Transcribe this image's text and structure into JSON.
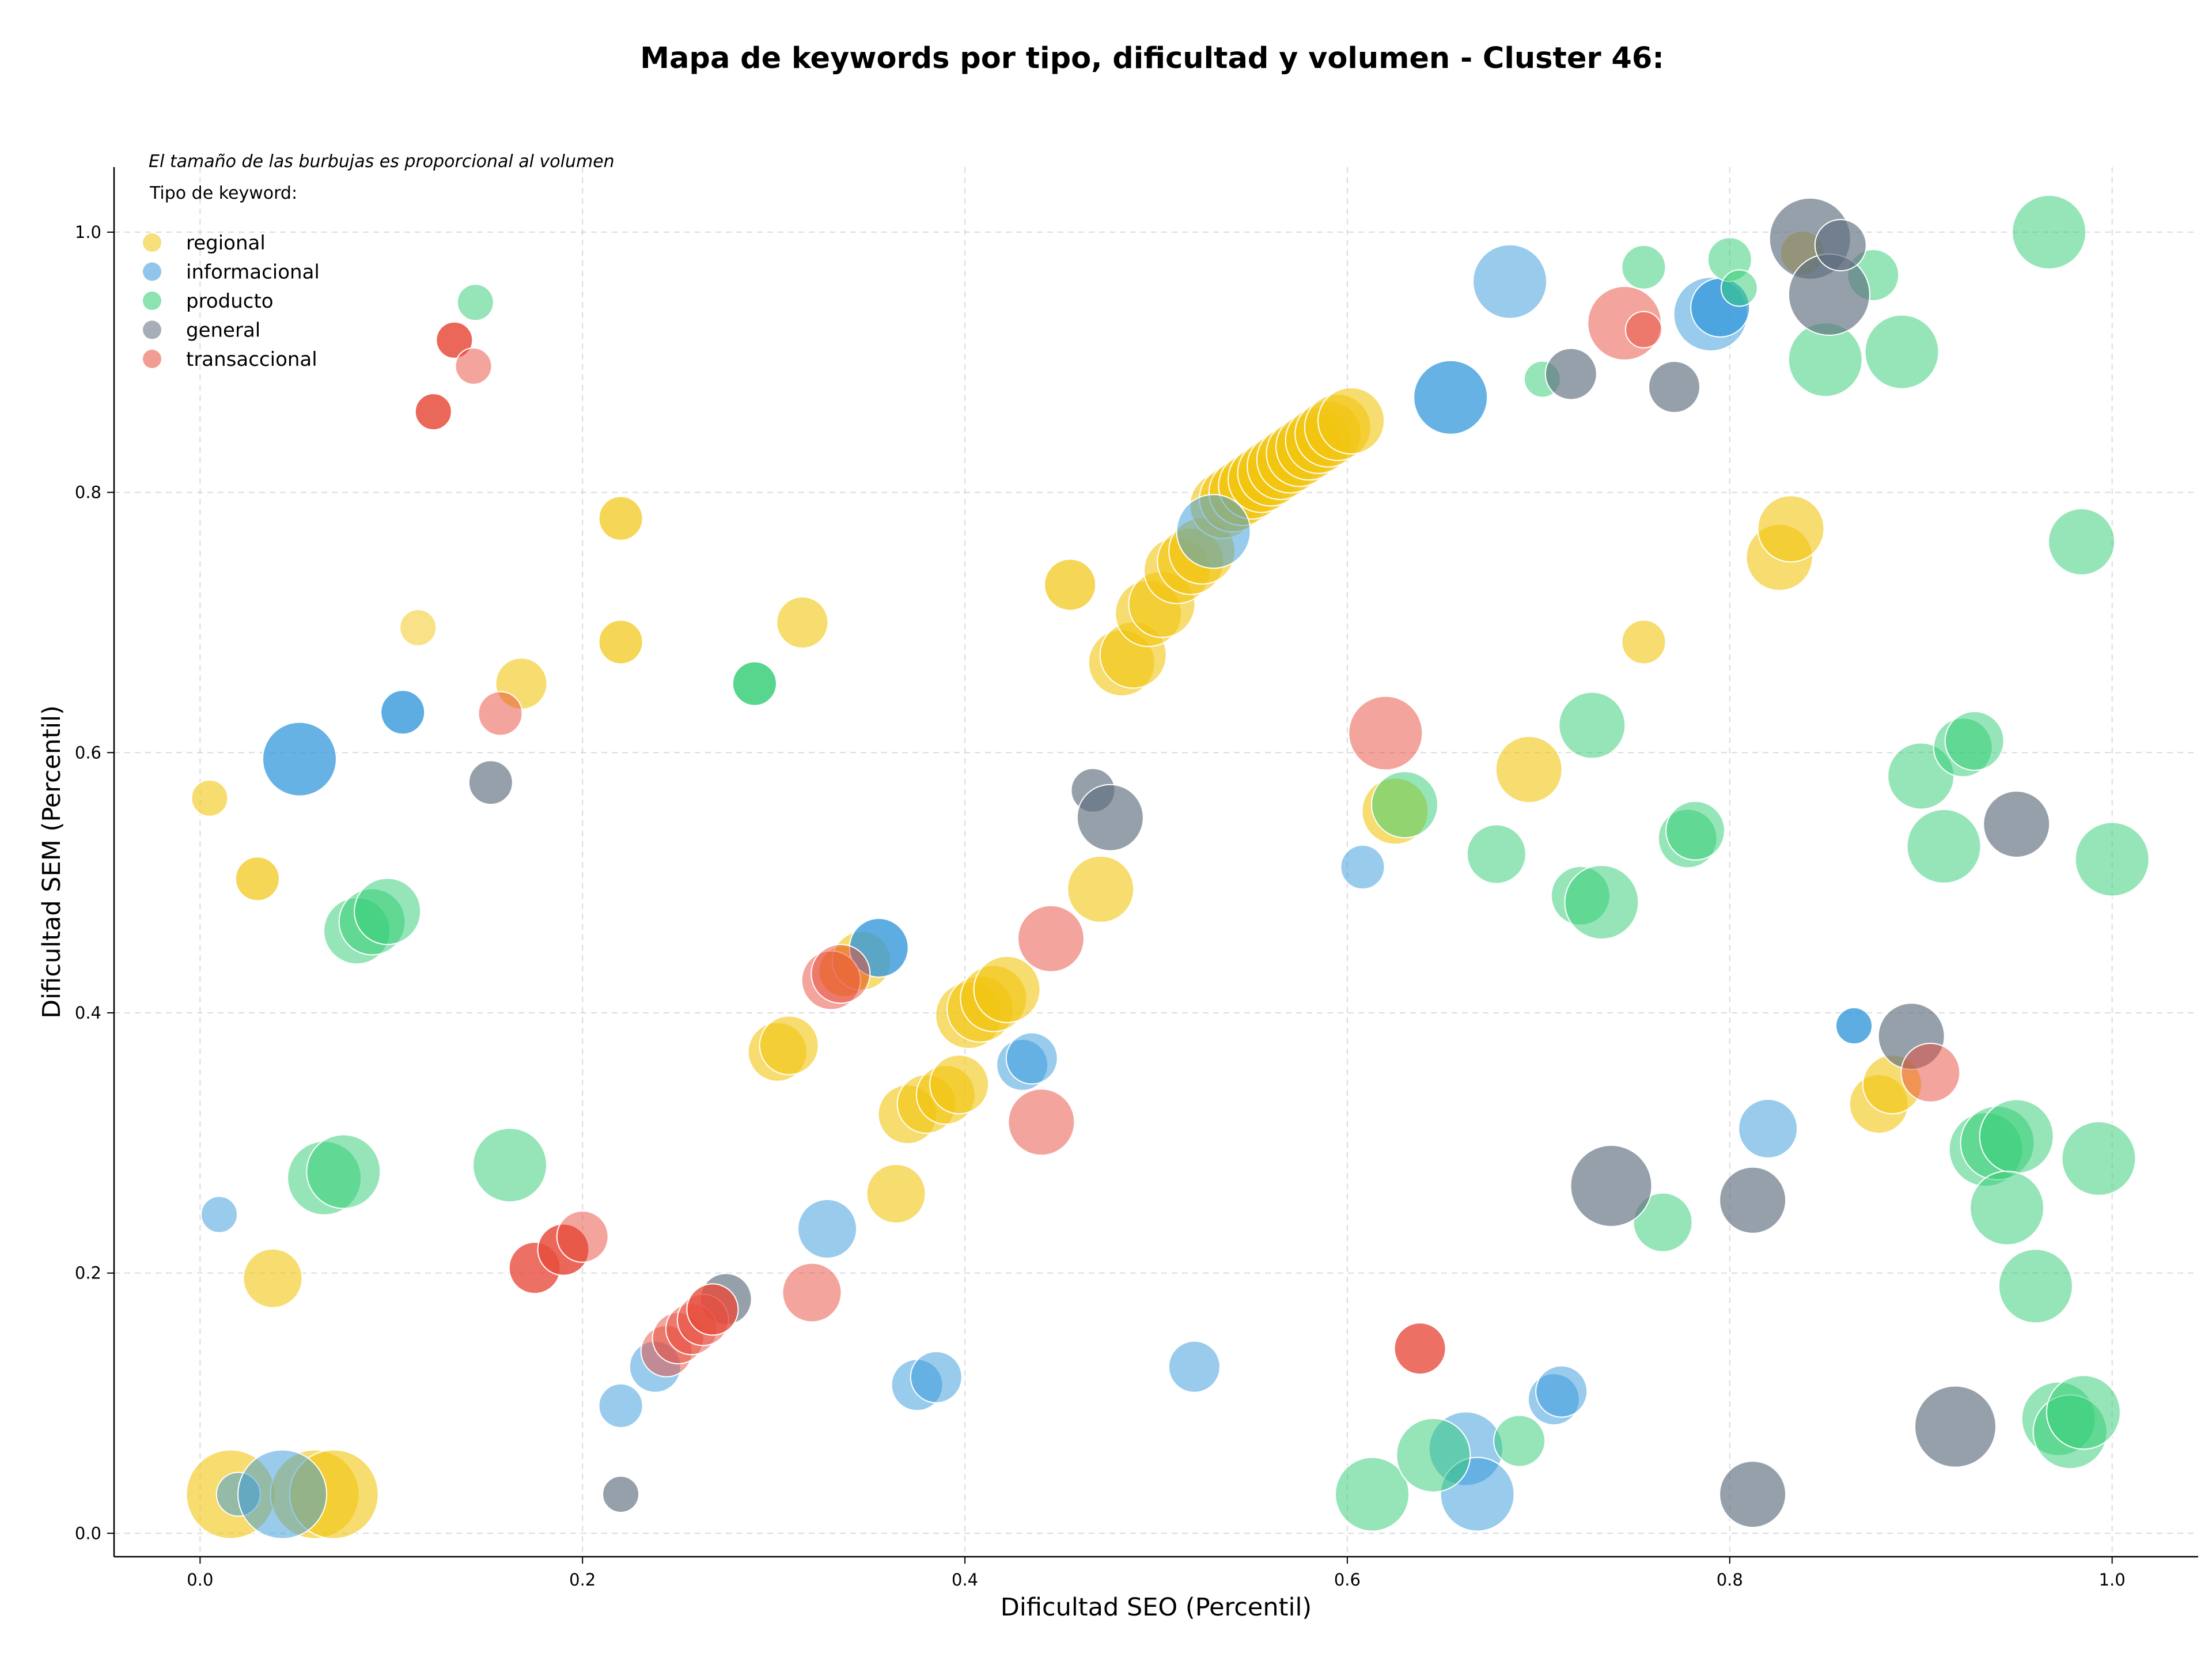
{
  "colors": {
    "regional": "#F1C40F",
    "informacional": "#3498DB",
    "producto": "#2ECC71",
    "general": "#5D6D7E",
    "transaccional": "#E74C3C"
  },
  "chart_data": {
    "type": "scatter",
    "title": "Mapa de keywords por tipo, dificultad y volumen - Cluster 46:",
    "xlabel": "Dificultad SEO (Percentil)",
    "ylabel": "Dificultad SEM (Percentil)",
    "xlim": [
      -0.045,
      1.045
    ],
    "ylim": [
      -0.018,
      1.05
    ],
    "xticks": [
      "0.0",
      "0.2",
      "0.4",
      "0.6",
      "0.8",
      "1.0"
    ],
    "yticks": [
      "0.0",
      "0.2",
      "0.4",
      "0.6",
      "0.8",
      "1.0"
    ],
    "grid": true,
    "note": "El tamaño de las burbujas es proporcional al volumen",
    "legend": {
      "title": "Tipo de keyword:",
      "position": "top-left",
      "entries": [
        "regional",
        "informacional",
        "producto",
        "general",
        "transaccional"
      ]
    },
    "series": [
      {
        "name": "regional",
        "points": [
          [
            0.005,
            0.565,
            1.5,
            0.6
          ],
          [
            0.03,
            0.503,
            2,
            0.7
          ],
          [
            0.038,
            0.196,
            3,
            0.6
          ],
          [
            0.016,
            0.03,
            5,
            0.6
          ],
          [
            0.06,
            0.03,
            5,
            0.6
          ],
          [
            0.07,
            0.03,
            5,
            0.6
          ],
          [
            0.114,
            0.696,
            1.5,
            0.5
          ],
          [
            0.168,
            0.653,
            2.5,
            0.6
          ],
          [
            0.22,
            0.78,
            2,
            0.7
          ],
          [
            0.22,
            0.685,
            2,
            0.7
          ],
          [
            0.315,
            0.7,
            2.5,
            0.6
          ],
          [
            0.302,
            0.37,
            3,
            0.6
          ],
          [
            0.308,
            0.375,
            3,
            0.6
          ],
          [
            0.337,
            0.432,
            2.5,
            0.7
          ],
          [
            0.346,
            0.44,
            3,
            0.6
          ],
          [
            0.364,
            0.261,
            3,
            0.6
          ],
          [
            0.37,
            0.322,
            3,
            0.6
          ],
          [
            0.38,
            0.33,
            3,
            0.6
          ],
          [
            0.39,
            0.337,
            3,
            0.6
          ],
          [
            0.397,
            0.345,
            3,
            0.6
          ],
          [
            0.402,
            0.398,
            3.5,
            0.6
          ],
          [
            0.408,
            0.403,
            3.5,
            0.6
          ],
          [
            0.415,
            0.411,
            3.5,
            0.6
          ],
          [
            0.422,
            0.418,
            3.5,
            0.6
          ],
          [
            0.455,
            0.729,
            2.5,
            0.7
          ],
          [
            0.471,
            0.495,
            3.5,
            0.6
          ],
          [
            0.482,
            0.669,
            3.5,
            0.6
          ],
          [
            0.488,
            0.675,
            3.5,
            0.6
          ],
          [
            0.496,
            0.707,
            3.5,
            0.6
          ],
          [
            0.503,
            0.714,
            3.5,
            0.6
          ],
          [
            0.511,
            0.74,
            3.5,
            0.6
          ],
          [
            0.518,
            0.747,
            3.5,
            0.6
          ],
          [
            0.524,
            0.755,
            3.5,
            0.6
          ],
          [
            0.535,
            0.79,
            3.5,
            0.6
          ],
          [
            0.54,
            0.795,
            3.5,
            0.6
          ],
          [
            0.545,
            0.8,
            3.5,
            0.6
          ],
          [
            0.55,
            0.805,
            3.5,
            0.6
          ],
          [
            0.555,
            0.81,
            3.5,
            0.6
          ],
          [
            0.56,
            0.815,
            3.5,
            0.6
          ],
          [
            0.565,
            0.82,
            3.5,
            0.6
          ],
          [
            0.57,
            0.825,
            3.5,
            0.6
          ],
          [
            0.575,
            0.83,
            3.5,
            0.6
          ],
          [
            0.58,
            0.835,
            3.5,
            0.6
          ],
          [
            0.585,
            0.84,
            3.5,
            0.6
          ],
          [
            0.59,
            0.845,
            3.5,
            0.6
          ],
          [
            0.595,
            0.85,
            3.5,
            0.6
          ],
          [
            0.602,
            0.855,
            3.5,
            0.6
          ],
          [
            0.625,
            0.555,
            3.5,
            0.6
          ],
          [
            0.695,
            0.587,
            3.5,
            0.6
          ],
          [
            0.755,
            0.685,
            2,
            0.6
          ],
          [
            0.826,
            0.75,
            3.5,
            0.6
          ],
          [
            0.832,
            0.772,
            3.5,
            0.6
          ],
          [
            0.838,
            0.984,
            2,
            0.6
          ],
          [
            0.878,
            0.33,
            3,
            0.6
          ],
          [
            0.885,
            0.345,
            3,
            0.6
          ]
        ]
      },
      {
        "name": "informacional",
        "points": [
          [
            0.01,
            0.245,
            1.5,
            0.5
          ],
          [
            0.02,
            0.03,
            2,
            0.5
          ],
          [
            0.043,
            0.03,
            5,
            0.5
          ],
          [
            0.052,
            0.595,
            4,
            0.75
          ],
          [
            0.106,
            0.631,
            2,
            0.8
          ],
          [
            0.22,
            0.098,
            2,
            0.5
          ],
          [
            0.238,
            0.128,
            2.5,
            0.5
          ],
          [
            0.328,
            0.234,
            3,
            0.5
          ],
          [
            0.355,
            0.45,
            3,
            0.8
          ],
          [
            0.375,
            0.114,
            2.5,
            0.5
          ],
          [
            0.385,
            0.12,
            2.5,
            0.5
          ],
          [
            0.43,
            0.36,
            2.5,
            0.5
          ],
          [
            0.435,
            0.365,
            2.5,
            0.5
          ],
          [
            0.52,
            0.128,
            2.5,
            0.5
          ],
          [
            0.53,
            0.77,
            4,
            0.5
          ],
          [
            0.608,
            0.512,
            2,
            0.5
          ],
          [
            0.654,
            0.873,
            4,
            0.75
          ],
          [
            0.662,
            0.065,
            4,
            0.5
          ],
          [
            0.668,
            0.03,
            4,
            0.5
          ],
          [
            0.685,
            0.962,
            4,
            0.5
          ],
          [
            0.708,
            0.103,
            2.5,
            0.5
          ],
          [
            0.712,
            0.109,
            2.5,
            0.5
          ],
          [
            0.79,
            0.937,
            4,
            0.5
          ],
          [
            0.795,
            0.942,
            3,
            0.75
          ],
          [
            0.82,
            0.311,
            3,
            0.5
          ],
          [
            0.865,
            0.39,
            1.5,
            0.8
          ]
        ]
      },
      {
        "name": "producto",
        "points": [
          [
            0.065,
            0.273,
            4,
            0.5
          ],
          [
            0.075,
            0.278,
            4,
            0.5
          ],
          [
            0.082,
            0.463,
            3.5,
            0.5
          ],
          [
            0.09,
            0.47,
            3.5,
            0.5
          ],
          [
            0.098,
            0.478,
            3.5,
            0.5
          ],
          [
            0.144,
            0.946,
            1.5,
            0.5
          ],
          [
            0.162,
            0.283,
            4,
            0.5
          ],
          [
            0.29,
            0.653,
            2,
            0.8
          ],
          [
            0.613,
            0.03,
            4,
            0.5
          ],
          [
            0.63,
            0.56,
            3.5,
            0.5
          ],
          [
            0.645,
            0.06,
            4,
            0.5
          ],
          [
            0.678,
            0.522,
            3,
            0.5
          ],
          [
            0.69,
            0.071,
            2.5,
            0.5
          ],
          [
            0.702,
            0.887,
            1.5,
            0.5
          ],
          [
            0.722,
            0.49,
            3,
            0.5
          ],
          [
            0.728,
            0.621,
            3.5,
            0.5
          ],
          [
            0.733,
            0.485,
            4,
            0.5
          ],
          [
            0.755,
            0.973,
            2,
            0.5
          ],
          [
            0.765,
            0.239,
            3,
            0.5
          ],
          [
            0.778,
            0.534,
            3,
            0.5
          ],
          [
            0.782,
            0.54,
            3,
            0.5
          ],
          [
            0.8,
            0.979,
            2,
            0.5
          ],
          [
            0.805,
            0.957,
            1.5,
            0.5
          ],
          [
            0.85,
            0.902,
            4,
            0.5
          ],
          [
            0.875,
            0.967,
            2.5,
            0.5
          ],
          [
            0.89,
            0.908,
            4,
            0.5
          ],
          [
            0.9,
            0.582,
            3.5,
            0.5
          ],
          [
            0.912,
            0.528,
            4,
            0.5
          ],
          [
            0.922,
            0.604,
            3,
            0.5
          ],
          [
            0.928,
            0.609,
            3,
            0.5
          ],
          [
            0.934,
            0.295,
            4,
            0.5
          ],
          [
            0.94,
            0.3,
            4,
            0.5
          ],
          [
            0.95,
            0.305,
            4,
            0.5
          ],
          [
            0.945,
            0.25,
            4,
            0.5
          ],
          [
            0.96,
            0.19,
            4,
            0.5
          ],
          [
            0.967,
            1.0,
            4,
            0.5
          ],
          [
            0.972,
            0.088,
            4,
            0.5
          ],
          [
            0.978,
            0.078,
            4,
            0.5
          ],
          [
            0.985,
            0.093,
            4,
            0.5
          ],
          [
            0.984,
            0.762,
            3.5,
            0.5
          ],
          [
            0.993,
            0.288,
            4,
            0.5
          ],
          [
            1.0,
            0.518,
            4,
            0.5
          ]
        ]
      },
      {
        "name": "general",
        "points": [
          [
            0.152,
            0.577,
            2,
            0.65
          ],
          [
            0.22,
            0.03,
            1.5,
            0.65
          ],
          [
            0.275,
            0.18,
            2.5,
            0.65
          ],
          [
            0.467,
            0.571,
            2,
            0.65
          ],
          [
            0.476,
            0.55,
            3.5,
            0.65
          ],
          [
            0.717,
            0.891,
            2.5,
            0.65
          ],
          [
            0.738,
            0.267,
            4.5,
            0.65
          ],
          [
            0.771,
            0.881,
            2.5,
            0.65
          ],
          [
            0.812,
            0.256,
            3.5,
            0.65
          ],
          [
            0.812,
            0.03,
            3.5,
            0.65
          ],
          [
            0.842,
            0.995,
            4.5,
            0.65
          ],
          [
            0.852,
            0.952,
            4.5,
            0.65
          ],
          [
            0.858,
            0.99,
            2.5,
            0.65
          ],
          [
            0.895,
            0.382,
            3.5,
            0.65
          ],
          [
            0.918,
            0.082,
            4.5,
            0.65
          ],
          [
            0.95,
            0.545,
            3.5,
            0.65
          ]
        ]
      },
      {
        "name": "transaccional",
        "points": [
          [
            0.122,
            0.862,
            1.5,
            0.85
          ],
          [
            0.133,
            0.917,
            1.5,
            0.85
          ],
          [
            0.143,
            0.897,
            1.5,
            0.5
          ],
          [
            0.157,
            0.63,
            2,
            0.5
          ],
          [
            0.175,
            0.204,
            2.5,
            0.8
          ],
          [
            0.19,
            0.218,
            2.5,
            0.85
          ],
          [
            0.2,
            0.228,
            2.5,
            0.5
          ],
          [
            0.244,
            0.14,
            2.5,
            0.5
          ],
          [
            0.25,
            0.15,
            2.5,
            0.5
          ],
          [
            0.257,
            0.157,
            2.5,
            0.5
          ],
          [
            0.263,
            0.164,
            2.5,
            0.5
          ],
          [
            0.268,
            0.172,
            2.5,
            0.8
          ],
          [
            0.32,
            0.185,
            3,
            0.5
          ],
          [
            0.33,
            0.425,
            3,
            0.5
          ],
          [
            0.335,
            0.43,
            3,
            0.5
          ],
          [
            0.44,
            0.316,
            3.5,
            0.5
          ],
          [
            0.445,
            0.457,
            3.5,
            0.5
          ],
          [
            0.62,
            0.615,
            4,
            0.5
          ],
          [
            0.638,
            0.142,
            2.5,
            0.8
          ],
          [
            0.745,
            0.93,
            4,
            0.5
          ],
          [
            0.755,
            0.925,
            1.5,
            0.5
          ],
          [
            0.905,
            0.354,
            3,
            0.5
          ]
        ]
      }
    ]
  }
}
